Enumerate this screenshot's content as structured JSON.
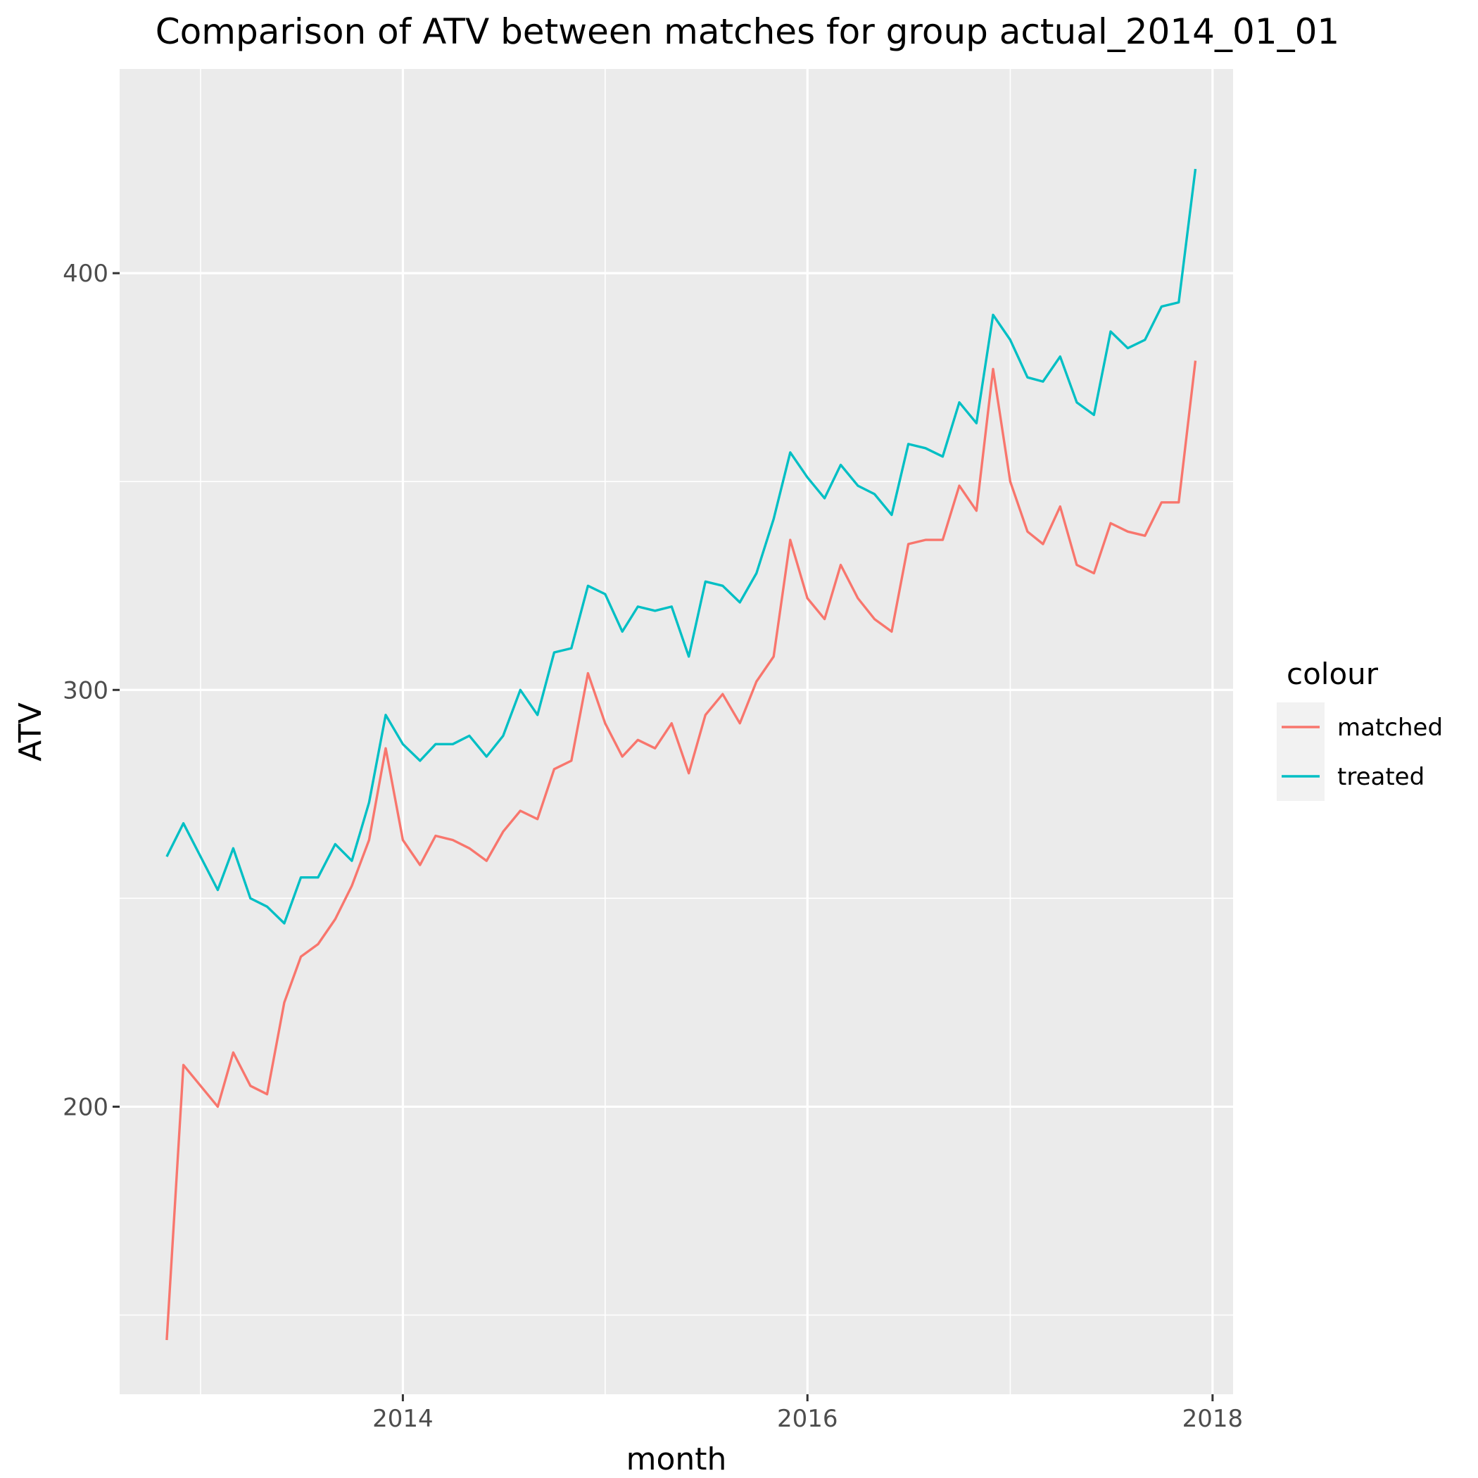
{
  "chart_data": {
    "type": "line",
    "title": "Comparison of ATV between matches for group actual_2014_01_01",
    "xlabel": "month",
    "ylabel": "ATV",
    "x_ticks": [
      "2014",
      "2016",
      "2018"
    ],
    "y_ticks": [
      200,
      300,
      400
    ],
    "xlim": [
      "2012-08-08",
      "2018-02-07"
    ],
    "ylim": [
      131,
      449
    ],
    "grid": true,
    "legend": {
      "title": "colour",
      "position": "right"
    },
    "x": [
      "2012-11-01",
      "2012-12-01",
      "2013-01-01",
      "2013-02-01",
      "2013-03-01",
      "2013-04-01",
      "2013-05-01",
      "2013-06-01",
      "2013-07-01",
      "2013-08-01",
      "2013-09-01",
      "2013-10-01",
      "2013-11-01",
      "2013-12-01",
      "2014-01-01",
      "2014-02-01",
      "2014-03-01",
      "2014-04-01",
      "2014-05-01",
      "2014-06-01",
      "2014-07-01",
      "2014-08-01",
      "2014-09-01",
      "2014-10-01",
      "2014-11-01",
      "2014-12-01",
      "2015-01-01",
      "2015-02-01",
      "2015-03-01",
      "2015-04-01",
      "2015-05-01",
      "2015-06-01",
      "2015-07-01",
      "2015-08-01",
      "2015-09-01",
      "2015-10-01",
      "2015-11-01",
      "2015-12-01",
      "2016-01-01",
      "2016-02-01",
      "2016-03-01",
      "2016-04-01",
      "2016-05-01",
      "2016-06-01",
      "2016-07-01",
      "2016-08-01",
      "2016-09-01",
      "2016-10-01",
      "2016-11-01",
      "2016-12-01",
      "2017-01-01",
      "2017-02-01",
      "2017-03-01",
      "2017-04-01",
      "2017-05-01",
      "2017-06-01",
      "2017-07-01",
      "2017-08-01",
      "2017-09-01",
      "2017-10-01",
      "2017-11-01",
      "2017-12-01"
    ],
    "series": [
      {
        "name": "matched",
        "color": "#F8766D",
        "values": [
          144,
          210,
          205,
          200,
          213,
          205,
          203,
          225,
          236,
          239,
          245,
          253,
          264,
          286,
          264,
          258,
          265,
          264,
          262,
          259,
          266,
          271,
          269,
          281,
          283,
          304,
          292,
          284,
          288,
          286,
          292,
          280,
          294,
          299,
          292,
          302,
          308,
          336,
          322,
          317,
          330,
          322,
          317,
          314,
          335,
          336,
          336,
          349,
          343,
          377,
          350,
          338,
          335,
          344,
          330,
          328,
          340,
          338,
          337,
          345,
          345,
          379
        ]
      },
      {
        "name": "treated",
        "color": "#00BFC4",
        "values": [
          260,
          268,
          260,
          252,
          262,
          250,
          248,
          244,
          255,
          255,
          263,
          259,
          273,
          294,
          287,
          283,
          287,
          287,
          289,
          284,
          289,
          300,
          294,
          309,
          310,
          325,
          323,
          314,
          320,
          319,
          320,
          308,
          326,
          325,
          321,
          328,
          341,
          357,
          351,
          346,
          354,
          349,
          347,
          342,
          359,
          358,
          356,
          369,
          364,
          390,
          384,
          375,
          374,
          380,
          369,
          366,
          386,
          382,
          384,
          392,
          393,
          425
        ]
      }
    ]
  }
}
